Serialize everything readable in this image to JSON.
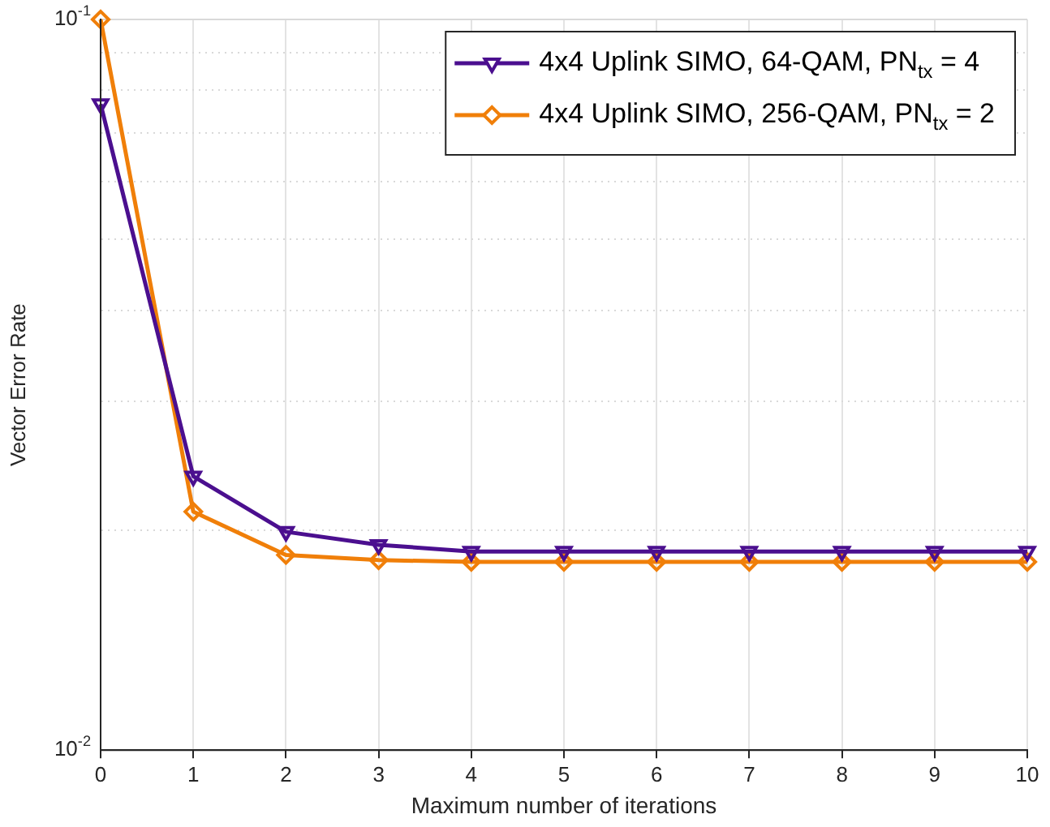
{
  "chart_data": {
    "type": "line",
    "xlabel": "Maximum number of iterations",
    "ylabel": "Vector Error Rate",
    "x": [
      0,
      1,
      2,
      3,
      4,
      5,
      6,
      7,
      8,
      9,
      10
    ],
    "series": [
      {
        "name": "4x4 Uplink SIMO, 64-QAM, PN$_{tx}$ = 4",
        "color": "#4b0f8f",
        "marker": "triangle",
        "values": [
          0.0766,
          0.0237,
          0.0199,
          0.0191,
          0.0187,
          0.0187,
          0.0187,
          0.0187,
          0.0187,
          0.0187,
          0.0187
        ]
      },
      {
        "name": "4x4 Uplink SIMO, 256-QAM, PN$_{tx}$ = 2",
        "color": "#f07f09",
        "marker": "diamond",
        "values": [
          0.1,
          0.0212,
          0.0185,
          0.0182,
          0.0181,
          0.0181,
          0.0181,
          0.0181,
          0.0181,
          0.0181,
          0.0181
        ]
      }
    ],
    "log": "y",
    "xlim": [
      0,
      10
    ],
    "xticks": [
      0,
      1,
      2,
      3,
      4,
      5,
      6,
      7,
      8,
      9,
      10
    ],
    "ylim": [
      0.01,
      0.1
    ],
    "yticks": [
      {
        "value": 0.01,
        "label": "10$^{-2}$"
      },
      {
        "value": 0.02,
        "label": null
      },
      {
        "value": 0.03,
        "label": null
      },
      {
        "value": 0.04,
        "label": null
      },
      {
        "value": 0.05,
        "label": null
      },
      {
        "value": 0.06,
        "label": null
      },
      {
        "value": 0.07,
        "label": null
      },
      {
        "value": 0.08,
        "label": null
      },
      {
        "value": 0.09,
        "label": null
      },
      {
        "value": 0.1,
        "label": "10$^{-1}$"
      }
    ],
    "grid": true,
    "legend": "top right",
    "line_style": "solid"
  }
}
